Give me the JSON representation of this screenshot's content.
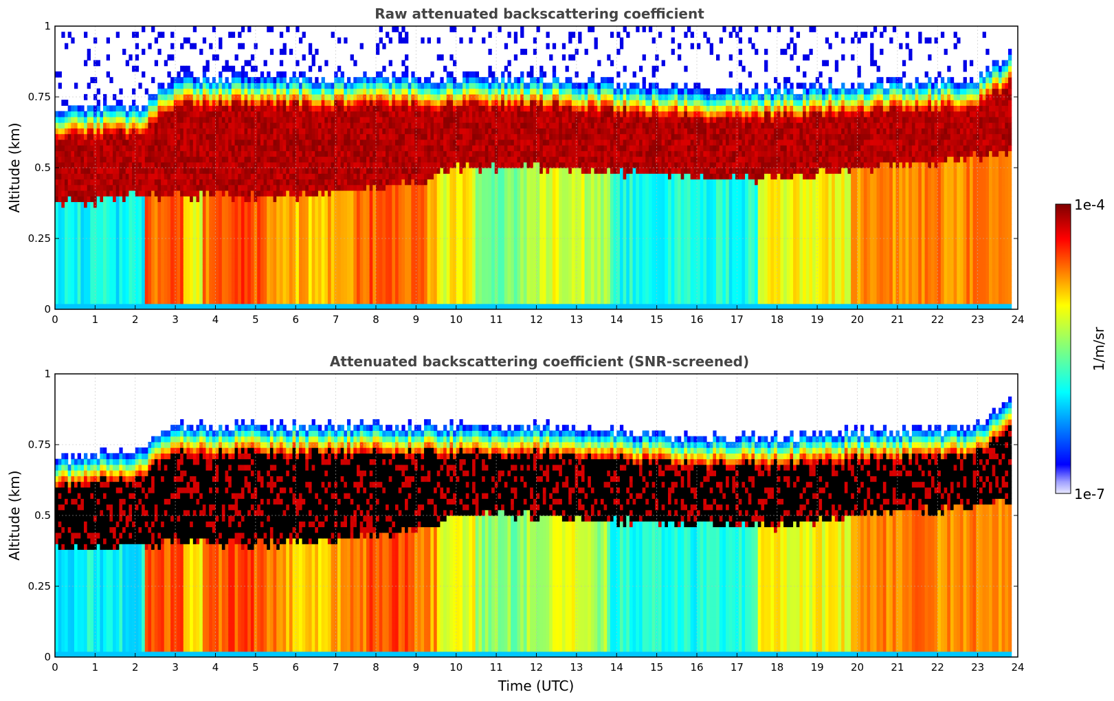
{
  "chart_data": [
    {
      "type": "heatmap",
      "title": "Raw attenuated backscattering coefficient",
      "xlabel": "",
      "ylabel": "Altitude (km)",
      "xlim": [
        0,
        24
      ],
      "ylim": [
        0,
        1
      ],
      "x_ticks": [
        "0",
        "1",
        "2",
        "3",
        "4",
        "5",
        "6",
        "7",
        "8",
        "9",
        "10",
        "11",
        "12",
        "13",
        "14",
        "15",
        "16",
        "17",
        "18",
        "19",
        "20",
        "21",
        "22",
        "23",
        "24"
      ],
      "y_ticks": [
        "0",
        "0.25",
        "0.5",
        "0.75",
        "1"
      ],
      "grid": true,
      "colormap": "jet",
      "value_range": [
        "1e-7",
        "1e-4"
      ],
      "layer_top_km": [
        [
          0,
          0.6
        ],
        [
          1,
          0.62
        ],
        [
          2,
          0.62
        ],
        [
          3,
          0.72
        ],
        [
          4,
          0.72
        ],
        [
          5,
          0.72
        ],
        [
          6,
          0.72
        ],
        [
          7,
          0.72
        ],
        [
          8,
          0.72
        ],
        [
          9,
          0.72
        ],
        [
          10,
          0.72
        ],
        [
          12,
          0.72
        ],
        [
          14,
          0.7
        ],
        [
          16,
          0.68
        ],
        [
          18,
          0.68
        ],
        [
          20,
          0.7
        ],
        [
          22,
          0.71
        ],
        [
          23,
          0.72
        ],
        [
          23.8,
          0.8
        ]
      ],
      "layer_bottom_km": [
        [
          0,
          0.38
        ],
        [
          1,
          0.38
        ],
        [
          2,
          0.4
        ],
        [
          3,
          0.4
        ],
        [
          6,
          0.4
        ],
        [
          9,
          0.45
        ],
        [
          10,
          0.5
        ],
        [
          12,
          0.5
        ],
        [
          14,
          0.48
        ],
        [
          16,
          0.47
        ],
        [
          18,
          0.46
        ],
        [
          20,
          0.5
        ],
        [
          22,
          0.52
        ],
        [
          23.8,
          0.55
        ]
      ]
    },
    {
      "type": "heatmap",
      "title": "Attenuated backscattering coefficient (SNR-screened)",
      "xlabel": "Time (UTC)",
      "ylabel": "Altitude (km)",
      "xlim": [
        0,
        24
      ],
      "ylim": [
        0,
        1
      ],
      "x_ticks": [
        "0",
        "1",
        "2",
        "3",
        "4",
        "5",
        "6",
        "7",
        "8",
        "9",
        "10",
        "11",
        "12",
        "13",
        "14",
        "15",
        "16",
        "17",
        "18",
        "19",
        "20",
        "21",
        "22",
        "23",
        "24"
      ],
      "y_ticks": [
        "0",
        "0.25",
        "0.5",
        "0.75",
        "1"
      ],
      "grid": true,
      "colormap": "jet",
      "value_range": [
        "1e-7",
        "1e-4"
      ],
      "saturated_color": "#000000"
    }
  ],
  "colorbar": {
    "max_label": "1e-4",
    "min_label": "1e-7",
    "unit_label": "1/m/sr"
  }
}
